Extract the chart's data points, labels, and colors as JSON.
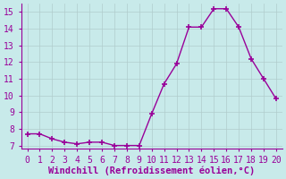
{
  "x": [
    0,
    1,
    2,
    3,
    4,
    5,
    6,
    7,
    8,
    9,
    10,
    11,
    12,
    13,
    14,
    15,
    16,
    17,
    18,
    19,
    20
  ],
  "y": [
    7.7,
    7.7,
    7.4,
    7.2,
    7.1,
    7.2,
    7.2,
    7.0,
    7.0,
    7.0,
    8.9,
    10.7,
    11.9,
    14.1,
    14.1,
    15.2,
    15.2,
    14.1,
    12.2,
    11.0,
    9.8
  ],
  "line_color": "#990099",
  "marker": "+",
  "background_color": "#c8eaea",
  "grid_color": "#b0cccc",
  "xlabel": "Windchill (Refroidissement éolien,°C)",
  "xlabel_color": "#990099",
  "tick_color": "#990099",
  "axis_color": "#990099",
  "xlim": [
    -0.5,
    20.5
  ],
  "ylim": [
    6.8,
    15.5
  ],
  "yticks": [
    7,
    8,
    9,
    10,
    11,
    12,
    13,
    14,
    15
  ],
  "xticks": [
    0,
    1,
    2,
    3,
    4,
    5,
    6,
    7,
    8,
    9,
    10,
    11,
    12,
    13,
    14,
    15,
    16,
    17,
    18,
    19,
    20
  ],
  "xlabel_fontsize": 7.5,
  "tick_fontsize": 7,
  "linewidth": 1.0,
  "markersize": 4,
  "markeredgewidth": 1.2
}
